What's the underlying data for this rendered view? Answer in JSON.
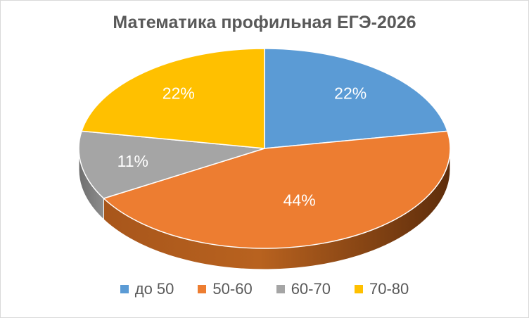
{
  "chart_data": {
    "type": "pie",
    "title": "Математика профильная ЕГЭ-2026",
    "categories": [
      "до 50",
      "50-60",
      "60-70",
      "70-80"
    ],
    "values": [
      22,
      44,
      11,
      22
    ],
    "data_labels": [
      "22%",
      "44%",
      "11%",
      "22%"
    ],
    "colors": [
      "#5b9bd5",
      "#ed7d31",
      "#a5a5a5",
      "#ffc000"
    ],
    "style": "3d",
    "legend_position": "bottom"
  }
}
